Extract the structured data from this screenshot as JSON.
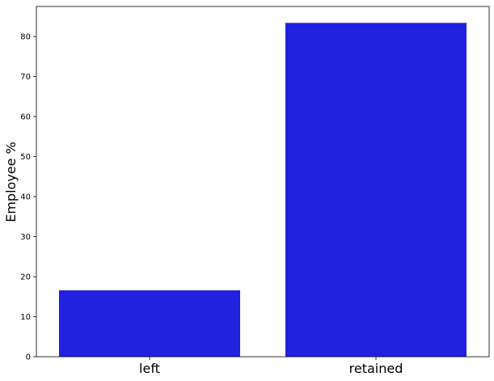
{
  "chart_data": {
    "type": "bar",
    "title": "",
    "xlabel": "",
    "ylabel": "Employee %",
    "categories": [
      "left",
      "retained"
    ],
    "values": [
      16.6,
      83.4
    ],
    "ylim": [
      0,
      87.5
    ],
    "yticks": [
      0,
      10,
      20,
      30,
      40,
      50,
      60,
      70,
      80
    ],
    "bar_color": "#2121e0",
    "grid": false,
    "legend": "none"
  }
}
